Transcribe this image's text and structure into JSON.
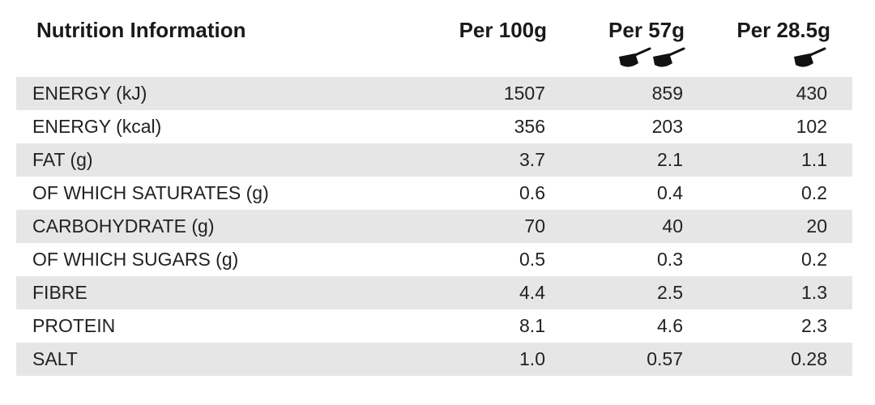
{
  "header": {
    "title": "Nutrition Information",
    "columns": [
      "Per 100g",
      "Per 57g",
      "Per 28.5g"
    ]
  },
  "table": {
    "rows": [
      [
        "ENERGY (kJ)",
        "1507",
        "859",
        "430"
      ],
      [
        "ENERGY (kcal)",
        "356",
        "203",
        "102"
      ],
      [
        "FAT (g)",
        "3.7",
        "2.1",
        "1.1"
      ],
      [
        "OF WHICH SATURATES (g)",
        "0.6",
        "0.4",
        "0.2"
      ],
      [
        "CARBOHYDRATE (g)",
        "70",
        "40",
        "20"
      ],
      [
        "OF WHICH SUGARS (g)",
        "0.5",
        "0.3",
        "0.2"
      ],
      [
        "FIBRE",
        "4.4",
        "2.5",
        "1.3"
      ],
      [
        "PROTEIN",
        "8.1",
        "4.6",
        "2.3"
      ],
      [
        "SALT",
        "1.0",
        "0.57",
        "0.28"
      ]
    ]
  }
}
